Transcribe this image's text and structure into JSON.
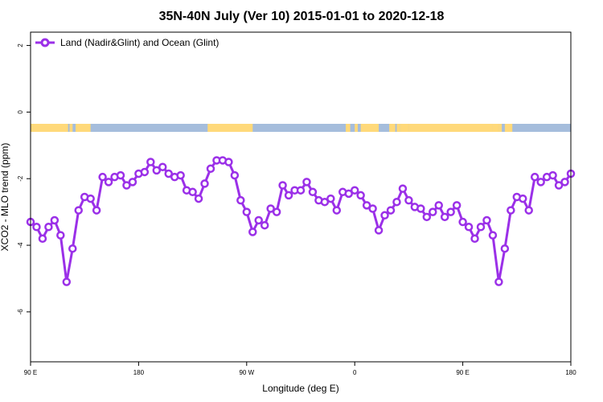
{
  "chart_data": {
    "type": "line",
    "title": "35N-40N July (Ver 10)   2015-01-01 to 2020-12-18",
    "xlabel": "Longitude (deg E)",
    "ylabel": "XCO2 - MLO trend (ppm)",
    "xlim": [
      90,
      450
    ],
    "ylim": [
      -7.5,
      2.4
    ],
    "xticks": [
      {
        "value": 90,
        "label": "90 E"
      },
      {
        "value": 162,
        "label": "180"
      },
      {
        "value": 234,
        "label": "90 W"
      },
      {
        "value": 306,
        "label": "0"
      },
      {
        "value": 378,
        "label": "90 E"
      },
      {
        "value": 450,
        "label": "180"
      }
    ],
    "yticks": [
      {
        "value": 2,
        "label": "2"
      },
      {
        "value": 0,
        "label": "0"
      },
      {
        "value": -2,
        "label": "-2"
      },
      {
        "value": -4,
        "label": "-4"
      },
      {
        "value": -6,
        "label": "-6"
      }
    ],
    "legend": {
      "position": "top-left"
    },
    "colors": {
      "series": "#9b30e8",
      "land": "#ffd97a",
      "ocean": "#a5bddc"
    },
    "land_mask": [
      [
        90,
        114
      ],
      [
        113,
        115
      ],
      [
        116,
        117
      ],
      [
        117,
        118
      ],
      [
        120,
        130
      ],
      [
        208,
        238
      ],
      [
        300,
        303
      ],
      [
        306,
        308
      ],
      [
        329,
        331
      ],
      [
        310,
        322
      ],
      [
        330,
        333
      ],
      [
        334,
        336
      ],
      [
        336,
        342
      ],
      [
        342,
        398
      ],
      [
        398,
        402
      ],
      [
        402,
        404
      ],
      [
        406,
        411
      ]
    ],
    "series": [
      {
        "name": "Land (Nadir&Glint) and Ocean (Glint)",
        "x": [
          90,
          94,
          98,
          102,
          106,
          110,
          114,
          118,
          122,
          126,
          130,
          134,
          138,
          142,
          146,
          150,
          154,
          158,
          162,
          166,
          170,
          174,
          178,
          182,
          186,
          190,
          194,
          198,
          202,
          206,
          210,
          214,
          218,
          222,
          226,
          230,
          234,
          238,
          242,
          246,
          250,
          254,
          258,
          262,
          266,
          270,
          274,
          278,
          282,
          286,
          290,
          294,
          298,
          302,
          306,
          310,
          314,
          318,
          322,
          326,
          330,
          334,
          338,
          342,
          346,
          350,
          354,
          358,
          362,
          366,
          370,
          374,
          378,
          382,
          386,
          390,
          394,
          398,
          402,
          406,
          410,
          414,
          418,
          422,
          426,
          430,
          434,
          438,
          442,
          446,
          450
        ],
        "y": [
          -3.3,
          -3.45,
          -3.8,
          -3.45,
          -3.25,
          -3.7,
          -5.1,
          -4.1,
          -2.95,
          -2.55,
          -2.6,
          -2.95,
          -1.95,
          -2.1,
          -1.95,
          -1.9,
          -2.2,
          -2.1,
          -1.85,
          -1.8,
          -1.5,
          -1.75,
          -1.65,
          -1.85,
          -1.95,
          -1.9,
          -2.35,
          -2.4,
          -2.6,
          -2.15,
          -1.7,
          -1.45,
          -1.45,
          -1.5,
          -1.9,
          -2.65,
          -3.0,
          -3.6,
          -3.25,
          -3.4,
          -2.9,
          -3.0,
          -2.2,
          -2.5,
          -2.35,
          -2.35,
          -2.1,
          -2.4,
          -2.65,
          -2.7,
          -2.6,
          -2.95,
          -2.4,
          -2.45,
          -2.35,
          -2.5,
          -2.8,
          -2.9,
          -3.55,
          -3.1,
          -2.95,
          -2.7,
          -2.3,
          -2.65,
          -2.85,
          -2.9,
          -3.15,
          -3.0,
          -2.8,
          -3.15,
          -3.0,
          -2.8,
          -3.3,
          -3.45,
          -3.8,
          -3.45,
          -3.25,
          -3.7,
          -5.1,
          -4.1,
          -2.95,
          -2.55,
          -2.6,
          -2.95,
          -1.95,
          -2.1,
          -1.95,
          -1.9,
          -2.2,
          -2.1,
          -1.85
        ]
      }
    ]
  }
}
